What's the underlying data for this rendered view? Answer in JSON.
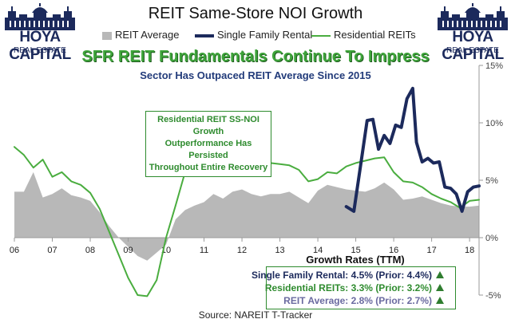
{
  "logos": {
    "name": "HOYA CAPITAL",
    "sub": "REAL ESTATE"
  },
  "colors": {
    "reit_average_fill": "#b8b8b8",
    "single_family_rental": "#1c2a5c",
    "residential_reits": "#4aad3f",
    "headline_green": "#3ea43a",
    "annotation_green": "#2e8b2e",
    "subheadline_navy": "#223b7a"
  },
  "annotation": {
    "line1": "Residential REIT SS-NOI Growth",
    "line2": "Outperformance Has Persisted",
    "line3": "Throughout Entire Recovery"
  },
  "summary": {
    "sfr": "Single Family Rental: 4.5% (Prior: 4.4%)",
    "residential": "Residential REITs: 3.3% (Prior: 3.2%)",
    "average": "REIT Average: 2.8% (Prior: 2.7%)",
    "sfr_indicator": "triangle-up-icon",
    "residential_indicator": "triangle-up-icon",
    "average_indicator": "triangle-up-icon"
  },
  "chart_data": {
    "type": "line",
    "title": "REIT Same-Store NOI Growth",
    "headline": "SFR REIT Fundamentals Continue To Impress",
    "subtitle": "Sector Has Outpaced REIT Average Since 2015",
    "xlabel": "Growth Rates (TTM)",
    "ylabel": "",
    "source": "Source: NAREIT T-Tracker",
    "x_tick_labels": [
      "06",
      "07",
      "08",
      "09",
      "10",
      "11",
      "12",
      "13",
      "14",
      "15",
      "16",
      "17",
      "18"
    ],
    "x_ticks": [
      2006,
      2007,
      2008,
      2009,
      2010,
      2011,
      2012,
      2013,
      2014,
      2015,
      2016,
      2017,
      2018
    ],
    "xlim": [
      2006,
      2018.25
    ],
    "y_tick_labels": [
      "-5%",
      "0%",
      "5%",
      "10%",
      "15%"
    ],
    "y_ticks": [
      -5,
      0,
      5,
      10,
      15
    ],
    "ylim": [
      -5,
      15
    ],
    "legend_position": "top-center",
    "grid": false,
    "series": [
      {
        "name": "REIT Average",
        "style": "area",
        "x": [
          2006.0,
          2006.25,
          2006.5,
          2006.75,
          2007.0,
          2007.25,
          2007.5,
          2007.75,
          2008.0,
          2008.25,
          2008.5,
          2008.75,
          2009.0,
          2009.25,
          2009.5,
          2009.75,
          2010.0,
          2010.25,
          2010.5,
          2010.75,
          2011.0,
          2011.25,
          2011.5,
          2011.75,
          2012.0,
          2012.25,
          2012.5,
          2012.75,
          2013.0,
          2013.25,
          2013.5,
          2013.75,
          2014.0,
          2014.25,
          2014.5,
          2014.75,
          2015.0,
          2015.25,
          2015.5,
          2015.75,
          2016.0,
          2016.25,
          2016.5,
          2016.75,
          2017.0,
          2017.25,
          2017.5,
          2017.75,
          2018.0,
          2018.25
        ],
        "values": [
          4.0,
          4.0,
          5.7,
          3.5,
          3.8,
          4.3,
          3.7,
          3.5,
          3.2,
          2.2,
          1.0,
          0.0,
          -0.8,
          -1.6,
          -2.0,
          -1.3,
          -0.6,
          1.6,
          2.4,
          2.8,
          3.1,
          3.8,
          3.4,
          4.0,
          4.2,
          3.8,
          3.6,
          3.8,
          3.8,
          4.0,
          3.5,
          3.0,
          4.1,
          4.6,
          4.4,
          4.2,
          4.1,
          4.0,
          4.3,
          4.8,
          4.2,
          3.3,
          3.4,
          3.6,
          3.3,
          3.0,
          2.8,
          2.7,
          2.7,
          2.8
        ]
      },
      {
        "name": "Single Family Rental",
        "style": "line",
        "x": [
          2014.75,
          2014.95,
          2015.15,
          2015.3,
          2015.45,
          2015.6,
          2015.75,
          2015.9,
          2016.05,
          2016.2,
          2016.35,
          2016.5,
          2016.6,
          2016.75,
          2016.9,
          2017.05,
          2017.2,
          2017.35,
          2017.5,
          2017.65,
          2017.8,
          2017.95,
          2018.1,
          2018.25
        ],
        "values": [
          2.7,
          2.3,
          6.8,
          10.2,
          10.3,
          7.7,
          8.9,
          8.2,
          9.8,
          9.6,
          12.1,
          13.0,
          8.3,
          6.6,
          6.9,
          6.5,
          6.6,
          4.4,
          4.3,
          3.8,
          2.3,
          4.0,
          4.4,
          4.5
        ]
      },
      {
        "name": "Residential REITs",
        "style": "line",
        "x": [
          2006.0,
          2006.25,
          2006.5,
          2006.75,
          2007.0,
          2007.25,
          2007.5,
          2007.75,
          2008.0,
          2008.25,
          2008.5,
          2008.75,
          2009.0,
          2009.25,
          2009.5,
          2009.75,
          2010.0,
          2010.25,
          2010.5,
          2010.75,
          2011.0,
          2011.25,
          2011.5,
          2011.75,
          2012.0,
          2012.25,
          2012.5,
          2012.75,
          2013.0,
          2013.25,
          2013.5,
          2013.75,
          2014.0,
          2014.25,
          2014.5,
          2014.75,
          2015.0,
          2015.25,
          2015.5,
          2015.75,
          2016.0,
          2016.25,
          2016.5,
          2016.75,
          2017.0,
          2017.25,
          2017.5,
          2017.75,
          2018.0,
          2018.25
        ],
        "values": [
          7.9,
          7.2,
          6.1,
          6.8,
          5.3,
          5.7,
          4.9,
          4.6,
          3.9,
          2.5,
          0.5,
          -1.5,
          -3.5,
          -5.0,
          -5.1,
          -3.7,
          0.0,
          2.8,
          5.7,
          6.9,
          7.2,
          6.8,
          7.0,
          7.5,
          7.7,
          7.0,
          6.6,
          6.5,
          6.4,
          6.3,
          5.9,
          4.9,
          5.1,
          5.7,
          5.6,
          6.2,
          6.5,
          6.7,
          6.9,
          7.0,
          5.7,
          4.9,
          4.8,
          4.4,
          3.8,
          3.4,
          3.1,
          2.6,
          3.2,
          3.3
        ]
      }
    ]
  }
}
